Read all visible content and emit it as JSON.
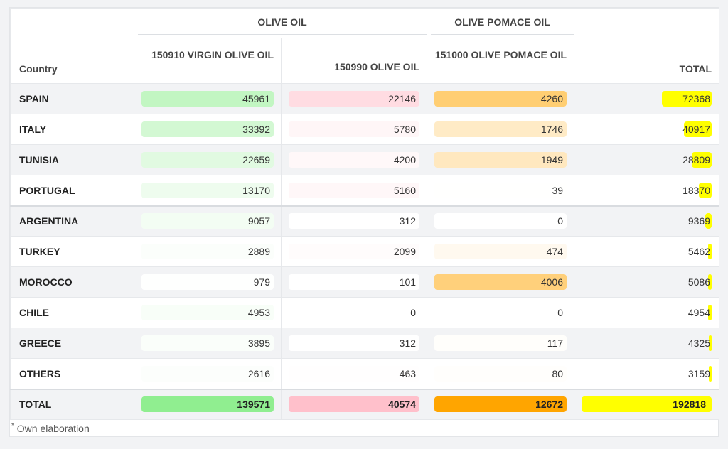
{
  "table": {
    "group_headers": [
      "OLIVE OIL",
      "OLIVE POMACE OIL"
    ],
    "country_header": "Country",
    "column_headers": [
      "150910 VIRGIN OLIVE OIL",
      "150990 OLIVE OIL",
      "151000 OLIVE POMACE OIL",
      "TOTAL"
    ]
  },
  "footnote": {
    "mark": "*",
    "text": "Own elaboration"
  },
  "colors": {
    "virgin": "#90ee90",
    "olive": "#ffc0cb",
    "pomace": "#ffa500",
    "total": "#ffff00"
  },
  "chart_data": {
    "type": "table",
    "columns": [
      "150910 VIRGIN OLIVE OIL",
      "150990 OLIVE OIL",
      "151000 OLIVE POMACE OIL",
      "TOTAL"
    ],
    "rows": [
      {
        "country": "SPAIN",
        "values": [
          45961,
          22146,
          4260,
          72368
        ]
      },
      {
        "country": "ITALY",
        "values": [
          33392,
          5780,
          1746,
          40917
        ]
      },
      {
        "country": "TUNISIA",
        "values": [
          22659,
          4200,
          1949,
          28809
        ]
      },
      {
        "country": "PORTUGAL",
        "values": [
          13170,
          5160,
          39,
          18370
        ]
      },
      {
        "country": "ARGENTINA",
        "values": [
          9057,
          312,
          0,
          9369
        ]
      },
      {
        "country": "TURKEY",
        "values": [
          2889,
          2099,
          474,
          5462
        ]
      },
      {
        "country": "MOROCCO",
        "values": [
          979,
          101,
          4006,
          5086
        ]
      },
      {
        "country": "CHILE",
        "values": [
          4953,
          0,
          0,
          4954
        ]
      },
      {
        "country": "GREECE",
        "values": [
          3895,
          312,
          117,
          4325
        ]
      },
      {
        "country": "OTHERS",
        "values": [
          2616,
          463,
          80,
          3159
        ]
      }
    ],
    "totals": {
      "label": "TOTAL",
      "values": [
        139571,
        40574,
        12672,
        192818
      ]
    }
  }
}
